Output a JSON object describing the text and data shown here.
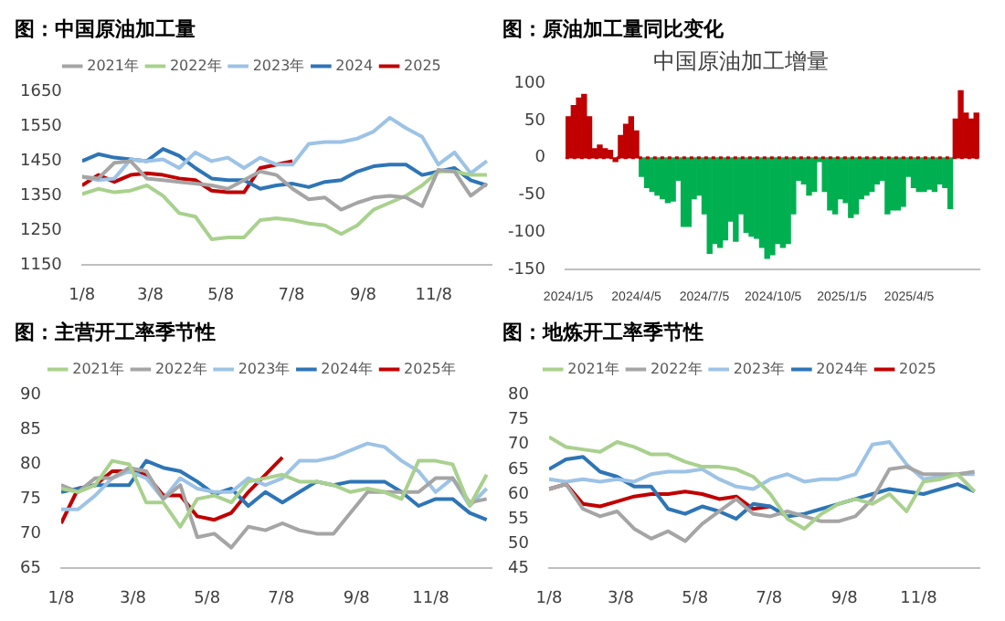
{
  "chart_data": [
    {
      "type": "line",
      "title": "图：中国原油加工量",
      "x": [
        "--01-08",
        "--01-22",
        "--02-05",
        "--02-19",
        "--03-05",
        "--03-19",
        "--04-02",
        "--04-16",
        "--04-30",
        "--05-14",
        "--05-28",
        "--06-11",
        "--06-25",
        "--07-09",
        "--07-23",
        "--08-06",
        "--08-20",
        "--09-03",
        "--09-17",
        "--10-01",
        "--10-15",
        "--10-29",
        "--11-12",
        "--11-26",
        "--12-10",
        "--12-24"
      ],
      "xlim": [
        "--01-08",
        "--12-28"
      ],
      "xticks": [
        {
          "value": "--01-08",
          "label": "1/8"
        },
        {
          "value": "--03-08",
          "label": "3/8"
        },
        {
          "value": "--05-08",
          "label": "5/8"
        },
        {
          "value": "--07-08",
          "label": "7/8"
        },
        {
          "value": "--09-08",
          "label": "9/8"
        },
        {
          "value": "--11-08",
          "label": "11/8"
        }
      ],
      "ylim": [
        1150,
        1650
      ],
      "yticks": [
        1150,
        1250,
        1350,
        1450,
        1550,
        1650
      ],
      "legend": "top",
      "series": [
        {
          "name": "2021年",
          "color": "#a5a5a5",
          "values": [
            1405,
            1400,
            1445,
            1450,
            1400,
            1395,
            1390,
            1385,
            1380,
            1370,
            1395,
            1420,
            1410,
            1370,
            1340,
            1345,
            1310,
            1330,
            1345,
            1350,
            1345,
            1320,
            1425,
            1420,
            1350,
            1385
          ]
        },
        {
          "name": "2022年",
          "color": "#a9d18e",
          "values": [
            1355,
            1370,
            1360,
            1365,
            1380,
            1350,
            1300,
            1290,
            1225,
            1230,
            1230,
            1280,
            1285,
            1280,
            1270,
            1265,
            1240,
            1265,
            1310,
            1330,
            1350,
            1380,
            1420,
            1420,
            1410,
            1410
          ]
        },
        {
          "name": "2023年",
          "color": "#9dc3e6",
          "values": [
            1405,
            1395,
            1400,
            1455,
            1450,
            1455,
            1430,
            1475,
            1450,
            1460,
            1430,
            1460,
            1440,
            1440,
            1500,
            1505,
            1505,
            1515,
            1535,
            1575,
            1545,
            1520,
            1440,
            1475,
            1415,
            1450
          ]
        },
        {
          "name": "2024",
          "color": "#2e75b6",
          "values": [
            1450,
            1470,
            1460,
            1455,
            1450,
            1485,
            1465,
            1430,
            1400,
            1395,
            1395,
            1370,
            1380,
            1385,
            1375,
            1390,
            1395,
            1420,
            1435,
            1440,
            1440,
            1410,
            1420,
            1430,
            1395,
            1380
          ]
        },
        {
          "name": "2025",
          "color": "#c00000",
          "values": [
            1380,
            1410,
            1390,
            1410,
            1415,
            1410,
            1400,
            1395,
            1365,
            1360,
            1360,
            1430,
            1440,
            1450,
            null,
            null,
            null,
            null,
            null,
            null,
            null,
            null,
            null,
            null,
            null,
            null
          ]
        }
      ]
    },
    {
      "type": "bar",
      "title": "图：原油加工量同比变化",
      "subtitle": "中国原油加工增量",
      "x": [
        "2024-01-05",
        "2024-01-12",
        "2024-01-19",
        "2024-01-26",
        "2024-02-02",
        "2024-02-09",
        "2024-02-16",
        "2024-02-23",
        "2024-03-01",
        "2024-03-08",
        "2024-03-15",
        "2024-03-22",
        "2024-03-29",
        "2024-04-05",
        "2024-04-12",
        "2024-04-19",
        "2024-04-26",
        "2024-05-03",
        "2024-05-10",
        "2024-05-17",
        "2024-05-24",
        "2024-05-31",
        "2024-06-07",
        "2024-06-14",
        "2024-06-21",
        "2024-06-28",
        "2024-07-05",
        "2024-07-12",
        "2024-07-19",
        "2024-07-26",
        "2024-08-02",
        "2024-08-09",
        "2024-08-16",
        "2024-08-23",
        "2024-08-30",
        "2024-09-06",
        "2024-09-13",
        "2024-09-20",
        "2024-09-27",
        "2024-10-04",
        "2024-10-11",
        "2024-10-18",
        "2024-10-25",
        "2024-11-01",
        "2024-11-08",
        "2024-11-15",
        "2024-11-22",
        "2024-11-29",
        "2024-12-06",
        "2024-12-13",
        "2024-12-20",
        "2024-12-27",
        "2025-01-03",
        "2025-01-10",
        "2025-01-17",
        "2025-01-24",
        "2025-01-31",
        "2025-02-07",
        "2025-02-14",
        "2025-02-21",
        "2025-02-28",
        "2025-03-07",
        "2025-03-14",
        "2025-03-21",
        "2025-03-28",
        "2025-04-04",
        "2025-04-11",
        "2025-04-18",
        "2025-04-25",
        "2025-05-02",
        "2025-05-09",
        "2025-05-16",
        "2025-05-23",
        "2025-05-30",
        "2025-06-06",
        "2025-06-13",
        "2025-06-20",
        "2025-06-27",
        "2025-07-04"
      ],
      "values": [
        55,
        70,
        80,
        85,
        55,
        12,
        17,
        12,
        10,
        -5,
        30,
        45,
        55,
        36,
        -25,
        -40,
        -45,
        -50,
        -55,
        -60,
        -58,
        -30,
        -92,
        -92,
        -55,
        -50,
        -75,
        -128,
        -115,
        -120,
        -110,
        -85,
        -112,
        -75,
        -100,
        -105,
        -108,
        -120,
        -135,
        -130,
        -115,
        -120,
        -115,
        -75,
        -30,
        -35,
        -50,
        -45,
        -5,
        -45,
        -70,
        -75,
        -55,
        -60,
        -80,
        -75,
        -55,
        -50,
        -45,
        -35,
        -30,
        -75,
        -70,
        -70,
        -65,
        -25,
        -40,
        -45,
        -45,
        -42,
        -45,
        -35,
        -40,
        -68,
        52,
        90,
        60,
        52,
        60
      ],
      "colors": [
        "#c00000",
        "#c00000",
        "#c00000",
        "#c00000",
        "#c00000",
        "#c00000",
        "#c00000",
        "#c00000",
        "#c00000",
        "#c00000",
        "#c00000",
        "#c00000",
        "#c00000",
        "#c00000",
        "#00b050",
        "#00b050",
        "#00b050",
        "#00b050",
        "#00b050",
        "#00b050",
        "#00b050",
        "#00b050",
        "#00b050",
        "#00b050",
        "#00b050",
        "#00b050",
        "#00b050",
        "#00b050",
        "#00b050",
        "#00b050",
        "#00b050",
        "#00b050",
        "#00b050",
        "#00b050",
        "#00b050",
        "#00b050",
        "#00b050",
        "#00b050",
        "#00b050",
        "#00b050",
        "#00b050",
        "#00b050",
        "#00b050",
        "#00b050",
        "#00b050",
        "#00b050",
        "#00b050",
        "#00b050",
        "#00b050",
        "#00b050",
        "#00b050",
        "#00b050",
        "#00b050",
        "#00b050",
        "#00b050",
        "#00b050",
        "#00b050",
        "#00b050",
        "#00b050",
        "#00b050",
        "#00b050",
        "#00b050",
        "#00b050",
        "#00b050",
        "#00b050",
        "#00b050",
        "#00b050",
        "#00b050",
        "#00b050",
        "#00b050",
        "#00b050",
        "#00b050",
        "#00b050",
        "#00b050",
        "#c00000",
        "#c00000",
        "#c00000",
        "#c00000",
        "#c00000"
      ],
      "xlim": [
        "2024-01-01",
        "2025-07-08"
      ],
      "xticks": [
        {
          "value": "2024-01-05",
          "label": "2024/1/5"
        },
        {
          "value": "2024-04-05",
          "label": "2024/4/5"
        },
        {
          "value": "2024-07-05",
          "label": "2024/7/5"
        },
        {
          "value": "2024-10-05",
          "label": "2024/10/5"
        },
        {
          "value": "2025-01-05",
          "label": "2025/1/5"
        },
        {
          "value": "2025-04-05",
          "label": "2025/4/5"
        }
      ],
      "ylim": [
        -150,
        100
      ],
      "yticks": [
        -150,
        -100,
        -50,
        0,
        50,
        100
      ],
      "ref_lines": [
        {
          "axis": "y",
          "value": 0,
          "color": "#c00000",
          "line_style": "dotted"
        }
      ]
    },
    {
      "type": "line",
      "title": "图：主营开工率季节性",
      "x": [
        "--01-08",
        "--01-22",
        "--02-05",
        "--02-19",
        "--03-05",
        "--03-19",
        "--04-02",
        "--04-16",
        "--04-30",
        "--05-14",
        "--05-28",
        "--06-11",
        "--06-25",
        "--07-09",
        "--07-23",
        "--08-06",
        "--08-20",
        "--09-03",
        "--09-17",
        "--10-01",
        "--10-15",
        "--10-29",
        "--11-12",
        "--11-26",
        "--12-10",
        "--12-24"
      ],
      "xlim": [
        "--01-08",
        "--12-28"
      ],
      "xticks": [
        {
          "value": "--01-08",
          "label": "1/8"
        },
        {
          "value": "--03-08",
          "label": "3/8"
        },
        {
          "value": "--05-08",
          "label": "5/8"
        },
        {
          "value": "--07-08",
          "label": "7/8"
        },
        {
          "value": "--09-08",
          "label": "9/8"
        },
        {
          "value": "--11-08",
          "label": "11/8"
        }
      ],
      "ylim": [
        65,
        90
      ],
      "yticks": [
        65,
        70,
        75,
        80,
        85,
        90
      ],
      "legend": "top",
      "series": [
        {
          "name": "2021年",
          "color": "#a9d18e",
          "values": [
            76.5,
            76,
            77,
            80.5,
            80,
            74.5,
            74.5,
            71,
            75,
            75.5,
            74.5,
            77.5,
            78,
            78.5,
            77.5,
            77.5,
            77,
            76,
            76.5,
            76,
            75,
            80.5,
            80.5,
            80,
            74,
            78.5
          ]
        },
        {
          "name": "2022年",
          "color": "#a5a5a5",
          "values": [
            77,
            76,
            78,
            78,
            79.5,
            79,
            75,
            77,
            69.5,
            70,
            68,
            71,
            70.5,
            71.5,
            70.5,
            70,
            70,
            73,
            76,
            76,
            76,
            76,
            78,
            78,
            74.5,
            75
          ]
        },
        {
          "name": "2023年",
          "color": "#9dc3e6",
          "values": [
            73.5,
            73.5,
            75.5,
            78,
            79,
            78,
            75,
            78,
            76.5,
            76,
            76,
            78,
            77,
            78,
            80.5,
            80.5,
            81,
            82,
            83,
            82.5,
            80.5,
            79,
            76,
            78,
            74,
            76.5
          ]
        },
        {
          "name": "2024年",
          "color": "#2e75b6",
          "values": [
            76,
            76.5,
            77,
            77,
            77,
            80.5,
            79.5,
            79,
            77.5,
            75.7,
            76.5,
            74,
            76,
            74.5,
            76,
            77.5,
            77,
            77.5,
            77.5,
            77.5,
            76,
            74,
            75,
            75,
            73,
            72
          ]
        },
        {
          "name": "2025年",
          "color": "#c00000",
          "values": [
            71.5,
            76.5,
            77,
            79,
            79,
            78.5,
            75.5,
            75.5,
            72.5,
            72,
            73,
            76,
            78.5,
            81,
            null,
            null,
            null,
            null,
            null,
            null,
            null,
            null,
            null,
            null,
            null,
            null
          ]
        }
      ]
    },
    {
      "type": "line",
      "title": "图：地炼开工率季节性",
      "x": [
        "--01-08",
        "--01-22",
        "--02-05",
        "--02-19",
        "--03-05",
        "--03-19",
        "--04-02",
        "--04-16",
        "--04-30",
        "--05-14",
        "--05-28",
        "--06-11",
        "--06-25",
        "--07-09",
        "--07-23",
        "--08-06",
        "--08-20",
        "--09-03",
        "--09-17",
        "--10-01",
        "--10-15",
        "--10-29",
        "--11-12",
        "--11-26",
        "--12-10",
        "--12-24"
      ],
      "xlim": [
        "--01-08",
        "--12-28"
      ],
      "xticks": [
        {
          "value": "--01-08",
          "label": "1/8"
        },
        {
          "value": "--03-08",
          "label": "3/8"
        },
        {
          "value": "--05-08",
          "label": "5/8"
        },
        {
          "value": "--07-08",
          "label": "7/8"
        },
        {
          "value": "--09-08",
          "label": "9/8"
        },
        {
          "value": "--11-08",
          "label": "11/8"
        }
      ],
      "ylim": [
        45,
        80
      ],
      "yticks": [
        45,
        50,
        55,
        60,
        65,
        70,
        75,
        80
      ],
      "legend": "top",
      "series": [
        {
          "name": "2021年",
          "color": "#a9d18e",
          "values": [
            71.5,
            69.5,
            69,
            68.5,
            70.5,
            69.5,
            68,
            68,
            66.5,
            65.5,
            65.5,
            65,
            63.5,
            60,
            55,
            53,
            56,
            58,
            59,
            58,
            60,
            56.5,
            62.5,
            63,
            64,
            60.5
          ]
        },
        {
          "name": "2022年",
          "color": "#a5a5a5",
          "values": [
            61,
            62,
            57,
            55.5,
            56.5,
            53,
            51,
            52.5,
            50.5,
            54,
            56.5,
            59,
            56,
            55.5,
            56.5,
            55.5,
            54.5,
            54.5,
            55.5,
            59,
            65,
            65.5,
            64,
            64,
            64,
            64.5
          ]
        },
        {
          "name": "2023年",
          "color": "#9dc3e6",
          "values": [
            63,
            62.5,
            63,
            62.5,
            63,
            62.5,
            64,
            64.5,
            64.5,
            65,
            63,
            61.5,
            61,
            63,
            64,
            62.5,
            63,
            63,
            64,
            70,
            70.5,
            66,
            63,
            63.5,
            64,
            64
          ]
        },
        {
          "name": "2024年",
          "color": "#2e75b6",
          "values": [
            65,
            67,
            67.5,
            64.5,
            63.5,
            61.5,
            61.5,
            57,
            56,
            57.5,
            56.5,
            55,
            58,
            57.5,
            55.5,
            56,
            57,
            58,
            59,
            60,
            61,
            60.5,
            60,
            61,
            62,
            60.5
          ]
        },
        {
          "name": "2025",
          "color": "#c00000",
          "values": [
            61,
            62,
            58,
            57.5,
            58.5,
            59.5,
            60,
            60,
            60.5,
            60,
            59,
            59.5,
            57,
            57.5,
            null,
            null,
            null,
            null,
            null,
            null,
            null,
            null,
            null,
            null,
            null,
            null
          ]
        }
      ]
    }
  ]
}
